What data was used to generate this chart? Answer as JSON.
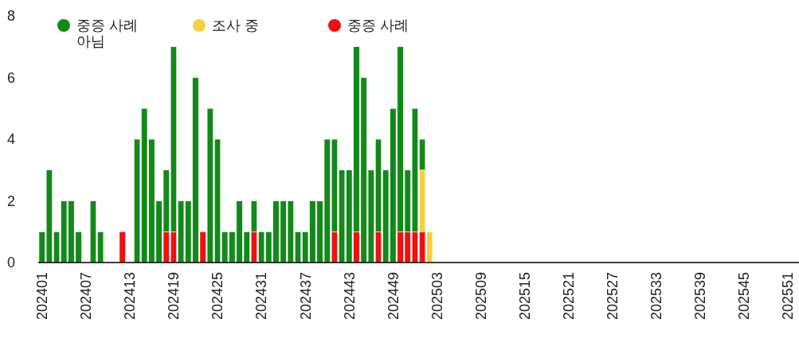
{
  "chart_data": {
    "type": "bar",
    "stacked": true,
    "legend": "top left",
    "categories": [
      "202401",
      null,
      null,
      null,
      null,
      null,
      "202407",
      null,
      null,
      null,
      null,
      null,
      "202413",
      null,
      null,
      null,
      null,
      null,
      "202419",
      null,
      null,
      null,
      null,
      null,
      "202425",
      null,
      null,
      null,
      null,
      null,
      "202431",
      null,
      null,
      null,
      null,
      null,
      "202437",
      null,
      null,
      null,
      null,
      null,
      "202443",
      null,
      null,
      null,
      null,
      null,
      "202449",
      null,
      null,
      null,
      null,
      null,
      "202503",
      null,
      null,
      null,
      null,
      null,
      "202509",
      null,
      null,
      null,
      null,
      null,
      "202515",
      null,
      null,
      null,
      null,
      null,
      "202521",
      null,
      null,
      null,
      null,
      null,
      "202527",
      null,
      null,
      null,
      null,
      null,
      "202533",
      null,
      null,
      null,
      null,
      null,
      "202539",
      null,
      null,
      null,
      null,
      null,
      "202545",
      null,
      null,
      null,
      null,
      null,
      "202551",
      null
    ],
    "series": [
      {
        "name": "중증 사례",
        "color": "#ee1111",
        "values": [
          0,
          0,
          0,
          0,
          0,
          0,
          0,
          0,
          0,
          0,
          0,
          1,
          0,
          0,
          0,
          0,
          0,
          1,
          1,
          0,
          0,
          0,
          1,
          0,
          0,
          0,
          0,
          0,
          0,
          1,
          0,
          0,
          0,
          0,
          0,
          0,
          0,
          0,
          0,
          0,
          1,
          0,
          0,
          1,
          0,
          0,
          1,
          0,
          0,
          1,
          1,
          1,
          1,
          0,
          0,
          0,
          0,
          0,
          0,
          0,
          0,
          0,
          0,
          0,
          0,
          0,
          0,
          0,
          0,
          0,
          0,
          0,
          0,
          0,
          0,
          0,
          0,
          0,
          0,
          0,
          0,
          0,
          0,
          0,
          0,
          0,
          0,
          0,
          0,
          0,
          0,
          0,
          0,
          0,
          0,
          0,
          0,
          0,
          0,
          0,
          0,
          0,
          0,
          0
        ]
      },
      {
        "name": "조사 중",
        "color": "#f5d142",
        "values": [
          0,
          0,
          0,
          0,
          0,
          0,
          0,
          0,
          0,
          0,
          0,
          0,
          0,
          0,
          0,
          0,
          0,
          0,
          0,
          0,
          0,
          0,
          0,
          0,
          0,
          0,
          0,
          0,
          0,
          0,
          0,
          0,
          0,
          0,
          0,
          0,
          0,
          0,
          0,
          0,
          0,
          0,
          0,
          0,
          0,
          0,
          0,
          0,
          0,
          0,
          0,
          0,
          2,
          1,
          0,
          0,
          0,
          0,
          0,
          0,
          0,
          0,
          0,
          0,
          0,
          0,
          0,
          0,
          0,
          0,
          0,
          0,
          0,
          0,
          0,
          0,
          0,
          0,
          0,
          0,
          0,
          0,
          0,
          0,
          0,
          0,
          0,
          0,
          0,
          0,
          0,
          0,
          0,
          0,
          0,
          0,
          0,
          0,
          0,
          0,
          0,
          0,
          0,
          0
        ]
      },
      {
        "name": "중증 사례 아님",
        "color": "#13891a",
        "values": [
          1,
          3,
          1,
          2,
          2,
          1,
          0,
          2,
          1,
          0,
          0,
          0,
          0,
          4,
          5,
          4,
          2,
          2,
          6,
          2,
          2,
          6,
          0,
          5,
          4,
          1,
          1,
          2,
          1,
          1,
          1,
          1,
          2,
          2,
          2,
          1,
          1,
          2,
          2,
          4,
          3,
          3,
          3,
          6,
          6,
          3,
          3,
          3,
          5,
          6,
          2,
          4,
          1,
          0,
          0,
          0,
          0,
          0,
          0,
          0,
          0,
          0,
          0,
          0,
          0,
          0,
          0,
          0,
          0,
          0,
          0,
          0,
          0,
          0,
          0,
          0,
          0,
          0,
          0,
          0,
          0,
          0,
          0,
          0,
          0,
          0,
          0,
          0,
          0,
          0,
          0,
          0,
          0,
          0,
          0,
          0,
          0,
          0,
          0,
          0,
          0,
          0,
          0,
          0
        ]
      }
    ],
    "ylim": [
      0,
      8
    ],
    "yticks": [
      0,
      2,
      4,
      6,
      8
    ]
  }
}
